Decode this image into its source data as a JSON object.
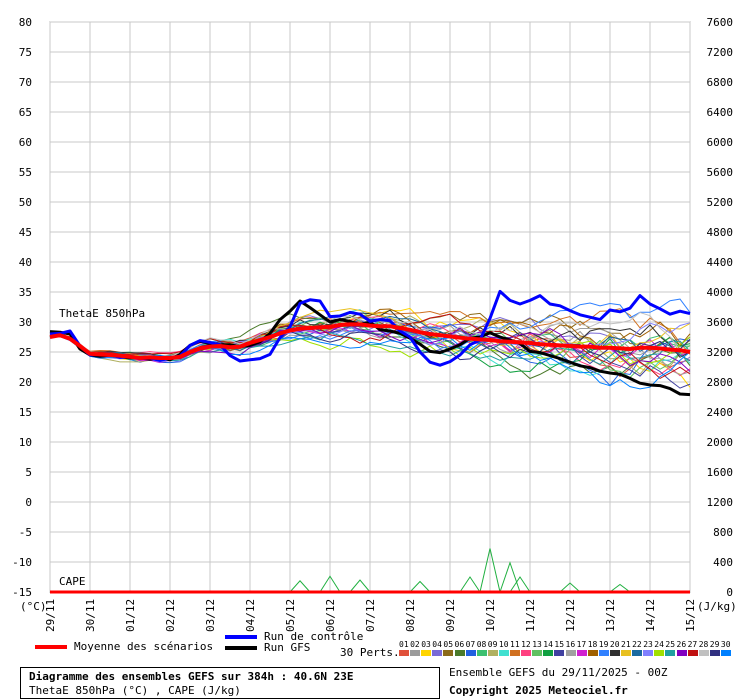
{
  "chart_data": {
    "type": "line",
    "left_axis": {
      "unit_label": "(°C)",
      "ylim": [
        -15,
        80
      ],
      "ticks": [
        80,
        75,
        70,
        65,
        60,
        55,
        50,
        45,
        40,
        35,
        30,
        25,
        20,
        15,
        10,
        5,
        0,
        -5,
        -10,
        -15
      ]
    },
    "right_axis": {
      "unit_label": "(J/kg)",
      "ylim": [
        0,
        7600
      ],
      "ticks": [
        7600,
        7200,
        6800,
        6400,
        6000,
        5600,
        5200,
        4800,
        4400,
        4000,
        3600,
        3200,
        2800,
        2400,
        2000,
        1600,
        1200,
        800,
        400,
        0
      ]
    },
    "x_ticks": [
      "29/11",
      "30/11",
      "01/12",
      "02/12",
      "03/12",
      "04/12",
      "05/12",
      "06/12",
      "07/12",
      "08/12",
      "09/12",
      "10/12",
      "11/12",
      "12/12",
      "13/12",
      "14/12",
      "15/12"
    ],
    "grid": true,
    "annotations": {
      "thetae": "ThetaE 850hPa",
      "cape": "CAPE"
    },
    "x_hours": [
      0,
      6,
      12,
      18,
      24,
      30,
      36,
      42,
      48,
      54,
      60,
      66,
      72,
      78,
      84,
      90,
      96,
      102,
      108,
      114,
      120,
      126,
      132,
      138,
      144,
      150,
      156,
      162,
      168,
      174,
      180,
      186,
      192,
      198,
      204,
      210,
      216,
      222,
      228,
      234,
      240,
      246,
      252,
      258,
      264,
      270,
      276,
      282,
      288,
      294,
      300,
      306,
      312,
      318,
      324,
      330,
      336,
      342,
      348,
      354,
      360,
      366,
      372,
      378,
      384
    ],
    "series": [
      {
        "name": "Moyenne des scénarios",
        "color": "#ff0000",
        "values": [
          27.5,
          27.8,
          27.2,
          26.0,
          24.7,
          24.6,
          24.5,
          24.4,
          24.2,
          24.0,
          24.1,
          24.0,
          24.0,
          24.2,
          25.0,
          25.6,
          25.9,
          26.0,
          25.8,
          25.9,
          26.5,
          27.0,
          27.5,
          28.1,
          28.6,
          28.9,
          29.0,
          29.1,
          29.2,
          29.5,
          29.6,
          29.6,
          29.4,
          29.3,
          29.3,
          29.0,
          28.7,
          28.3,
          28.0,
          27.8,
          27.6,
          27.4,
          27.2,
          27.1,
          27.0,
          26.8,
          26.7,
          26.6,
          26.5,
          26.3,
          26.2,
          26.1,
          26.0,
          25.9,
          25.9,
          25.7,
          25.7,
          25.6,
          25.5,
          25.7,
          25.7,
          25.6,
          25.4,
          25.3,
          25.0
        ]
      },
      {
        "name": "Run de contrôle",
        "color": "#0000ff",
        "values": [
          28.0,
          28.1,
          28.5,
          26.0,
          24.5,
          24.6,
          24.6,
          24.1,
          24.2,
          23.9,
          24.0,
          23.6,
          24.0,
          24.3,
          26.1,
          26.9,
          26.6,
          26.2,
          24.4,
          23.5,
          23.7,
          23.9,
          24.6,
          27.4,
          29.2,
          33.1,
          33.7,
          33.5,
          30.9,
          31.0,
          31.6,
          31.3,
          30.1,
          30.4,
          30.2,
          28.5,
          27.5,
          25.0,
          23.3,
          22.8,
          23.4,
          24.5,
          26.2,
          27.0,
          30.6,
          35.1,
          33.6,
          33.0,
          33.6,
          34.4,
          33.0,
          32.7,
          31.9,
          31.2,
          30.8,
          30.4,
          32.0,
          31.7,
          32.3,
          34.4,
          33.0,
          32.2,
          31.3,
          31.8,
          31.4
        ]
      },
      {
        "name": "Run GFS",
        "color": "#000000",
        "values": [
          28.4,
          28.3,
          28.0,
          25.5,
          24.5,
          24.3,
          24.5,
          24.2,
          24.0,
          24.0,
          23.8,
          24.0,
          23.7,
          24.6,
          26.1,
          26.8,
          26.4,
          26.2,
          26.2,
          25.9,
          26.1,
          26.7,
          28.1,
          30.4,
          31.8,
          33.5,
          32.4,
          31.2,
          30.0,
          30.4,
          30.1,
          29.6,
          30.0,
          28.7,
          28.5,
          28.1,
          27.3,
          26.3,
          25.1,
          24.9,
          25.5,
          26.2,
          27.3,
          27.5,
          28.2,
          27.5,
          27.0,
          26.4,
          25.1,
          24.9,
          24.4,
          23.9,
          23.3,
          22.7,
          22.4,
          21.8,
          21.5,
          21.3,
          20.6,
          19.8,
          19.5,
          19.4,
          18.9,
          18.0,
          17.9
        ]
      }
    ],
    "perturbation_colors": [
      "#e0503a",
      "#9b9b9b",
      "#ffd500",
      "#7b6bd6",
      "#8b6a1a",
      "#4a7a2a",
      "#2060e0",
      "#3cc070",
      "#b0b060",
      "#40e0d0",
      "#d07020",
      "#ff4080",
      "#60c060",
      "#10a040",
      "#4040a0",
      "#a0a0a0",
      "#d020d0",
      "#a06000",
      "#3080ff",
      "#303030",
      "#e8c020",
      "#1a6aa0",
      "#8080ff",
      "#a0e000",
      "#20a0a0",
      "#8000c0",
      "#c01010",
      "#c0c0c0",
      "#303080",
      "#0080ff"
    ],
    "cape_values": {
      "mean": [
        0,
        0,
        0,
        0,
        0,
        0,
        0,
        0,
        0,
        0,
        0,
        0,
        0,
        0,
        0,
        0,
        0,
        0,
        0,
        0,
        0,
        0,
        0,
        0,
        0,
        0,
        0,
        0,
        0,
        0,
        0,
        0,
        0,
        0,
        0,
        0,
        0,
        0,
        0,
        0,
        0,
        0,
        0,
        0,
        0,
        0,
        0,
        0,
        0,
        0,
        0,
        0,
        0,
        0,
        0,
        0,
        0,
        0,
        0,
        0,
        0,
        0,
        0,
        0,
        0
      ],
      "spikes": [
        [
          150,
          150
        ],
        [
          168,
          210
        ],
        [
          186,
          160
        ],
        [
          222,
          140
        ],
        [
          252,
          200
        ],
        [
          264,
          580
        ],
        [
          276,
          390
        ],
        [
          282,
          200
        ],
        [
          312,
          120
        ],
        [
          342,
          100
        ]
      ]
    }
  },
  "legend": {
    "mean_label": "Moyenne des scénarios",
    "control_label": "Run de contrôle",
    "gfs_label": "Run GFS",
    "perts_label": "30 Perts.",
    "pert_numbers": [
      "01",
      "02",
      "03",
      "04",
      "05",
      "06",
      "07",
      "08",
      "09",
      "10",
      "11",
      "12",
      "13",
      "14",
      "15",
      "16",
      "17",
      "18",
      "19",
      "20",
      "21",
      "22",
      "23",
      "24",
      "25",
      "26",
      "27",
      "28",
      "29",
      "30"
    ]
  },
  "footer": {
    "title": "Diagramme des ensembles GEFS sur 384h : 40.6N 23E",
    "subtitle": "ThetaE 850hPa (°C) , CAPE (J/kg)",
    "run": "Ensemble GEFS du 29/11/2025 - 00Z",
    "copyright": "Copyright 2025 Meteociel.fr"
  }
}
